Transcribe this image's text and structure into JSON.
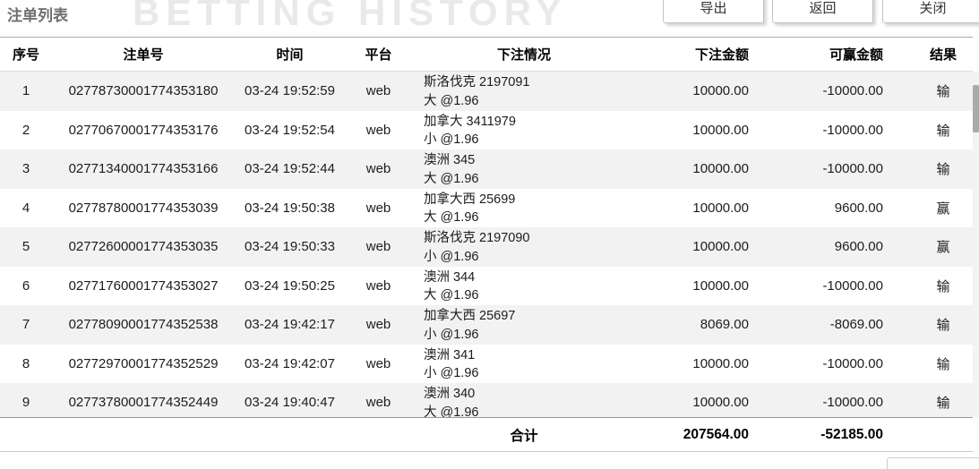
{
  "page": {
    "title": "注单列表",
    "watermark": "BETTING HISTORY"
  },
  "toolbar": {
    "export_label": "导出",
    "back_label": "返回",
    "close_label": "关闭"
  },
  "table": {
    "columns": [
      "序号",
      "注单号",
      "时间",
      "平台",
      "下注情况",
      "下注金额",
      "可赢金额",
      "结果"
    ],
    "rows": [
      {
        "no": "1",
        "bet_id": "02778730001774353180",
        "time": "03-24 19:52:59",
        "platform": "web",
        "bet_line1": "斯洛伐克 2197091",
        "bet_line2": "大 @1.96",
        "amount": "10000.00",
        "winnable": "-10000.00",
        "result": "输"
      },
      {
        "no": "2",
        "bet_id": "02770670001774353176",
        "time": "03-24 19:52:54",
        "platform": "web",
        "bet_line1": "加拿大 3411979",
        "bet_line2": "小 @1.96",
        "amount": "10000.00",
        "winnable": "-10000.00",
        "result": "输"
      },
      {
        "no": "3",
        "bet_id": "02771340001774353166",
        "time": "03-24 19:52:44",
        "platform": "web",
        "bet_line1": "澳洲 345",
        "bet_line2": "大 @1.96",
        "amount": "10000.00",
        "winnable": "-10000.00",
        "result": "输"
      },
      {
        "no": "4",
        "bet_id": "02778780001774353039",
        "time": "03-24 19:50:38",
        "platform": "web",
        "bet_line1": "加拿大西 25699",
        "bet_line2": "大 @1.96",
        "amount": "10000.00",
        "winnable": "9600.00",
        "result": "赢"
      },
      {
        "no": "5",
        "bet_id": "02772600001774353035",
        "time": "03-24 19:50:33",
        "platform": "web",
        "bet_line1": "斯洛伐克 2197090",
        "bet_line2": "小 @1.96",
        "amount": "10000.00",
        "winnable": "9600.00",
        "result": "赢"
      },
      {
        "no": "6",
        "bet_id": "02771760001774353027",
        "time": "03-24 19:50:25",
        "platform": "web",
        "bet_line1": "澳洲 344",
        "bet_line2": "大 @1.96",
        "amount": "10000.00",
        "winnable": "-10000.00",
        "result": "输"
      },
      {
        "no": "7",
        "bet_id": "02778090001774352538",
        "time": "03-24 19:42:17",
        "platform": "web",
        "bet_line1": "加拿大西 25697",
        "bet_line2": "小 @1.96",
        "amount": "8069.00",
        "winnable": "-8069.00",
        "result": "输"
      },
      {
        "no": "8",
        "bet_id": "02772970001774352529",
        "time": "03-24 19:42:07",
        "platform": "web",
        "bet_line1": "澳洲 341",
        "bet_line2": "小 @1.96",
        "amount": "10000.00",
        "winnable": "-10000.00",
        "result": "输"
      },
      {
        "no": "9",
        "bet_id": "02773780001774352449",
        "time": "03-24 19:40:47",
        "platform": "web",
        "bet_line1": "澳洲 340",
        "bet_line2": "大 @1.96",
        "amount": "10000.00",
        "winnable": "-10000.00",
        "result": "输"
      }
    ],
    "total": {
      "label": "合计",
      "amount": "207564.00",
      "winnable": "-52185.00"
    }
  },
  "colors": {
    "row_alt_bg": "#f2f2f2",
    "header_border": "#a8a8a8",
    "watermark": "#e9e9e9"
  }
}
